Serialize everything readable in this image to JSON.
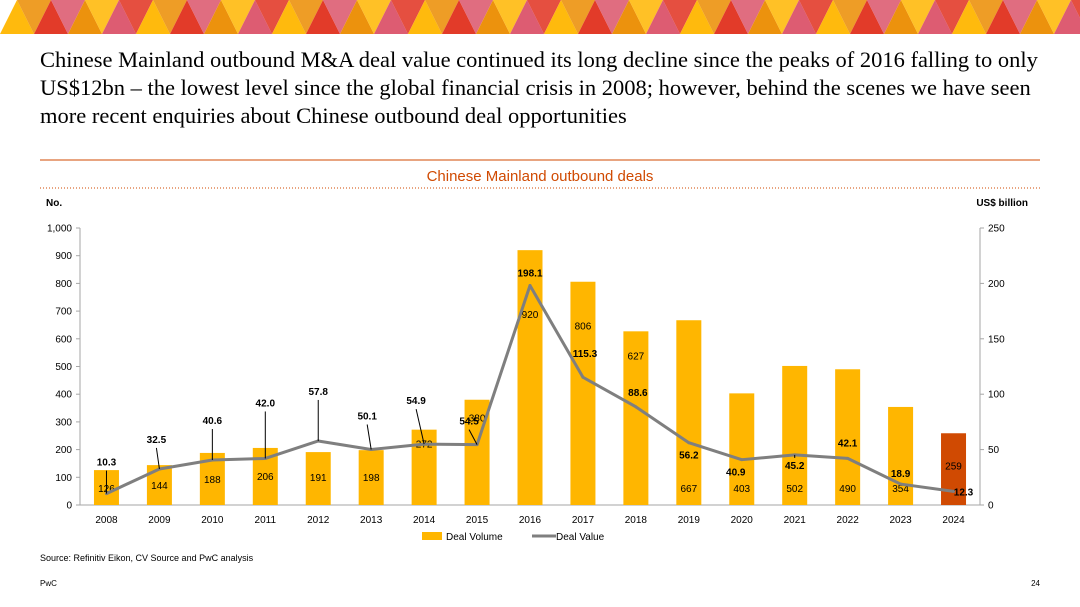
{
  "headline": "Chinese Mainland outbound M&A deal value continued its long decline since the peaks of 2016 falling to only US$12bn – the lowest level since the global financial crisis in 2008; however, behind the scenes we have seen more recent enquiries about Chinese outbound deal opportunities",
  "source": "Source: Refinitiv Eikon, CV Source and PwC analysis",
  "footer": {
    "brand": "PwC",
    "page": "24"
  },
  "colors": {
    "bar": "#FFB600",
    "bar_highlight": "#D04A02",
    "line": "#7F7F7F",
    "title": "#D04A02",
    "rule": "#D04A02",
    "banner": [
      "#FFB600",
      "#E0301E",
      "#EB8C00",
      "#DB536A"
    ]
  },
  "chart_data": {
    "type": "bar",
    "title": "Chinese Mainland outbound deals",
    "categories": [
      "2008",
      "2009",
      "2010",
      "2011",
      "2012",
      "2013",
      "2014",
      "2015",
      "2016",
      "2017",
      "2018",
      "2019",
      "2020",
      "2021",
      "2022",
      "2023",
      "2024"
    ],
    "series": [
      {
        "name": "Deal Volume",
        "type": "bar",
        "axis": "left",
        "values": [
          126,
          144,
          188,
          206,
          191,
          198,
          272,
          380,
          920,
          806,
          627,
          667,
          403,
          502,
          490,
          354,
          259
        ]
      },
      {
        "name": "Deal Value",
        "type": "line",
        "axis": "right",
        "values": [
          10.3,
          32.5,
          40.6,
          42.0,
          57.8,
          50.1,
          54.9,
          54.5,
          198.1,
          115.3,
          88.6,
          56.2,
          40.9,
          45.2,
          42.1,
          18.9,
          12.3
        ]
      }
    ],
    "ylabel_left": "No.",
    "ylabel_right": "US$ billion",
    "ylim_left": [
      0,
      1000
    ],
    "ylim_right": [
      0,
      250
    ],
    "yticks_left": [
      "0",
      "100",
      "200",
      "300",
      "400",
      "500",
      "600",
      "700",
      "800",
      "900",
      "1,000"
    ],
    "yticks_right": [
      "0",
      "50",
      "100",
      "150",
      "200",
      "250"
    ],
    "value_labels_right": [
      "10.3",
      "32.5",
      "40.6",
      "42.0",
      "57.8",
      "50.1",
      "54.9",
      "54.5",
      "198.1",
      "115.3",
      "88.6",
      "56.2",
      "40.9",
      "45.2",
      "42.1",
      "18.9",
      "12.3"
    ],
    "legend": [
      "Deal Volume",
      "Deal Value"
    ],
    "legend_position": "bottom",
    "highlight_category": "2024"
  }
}
